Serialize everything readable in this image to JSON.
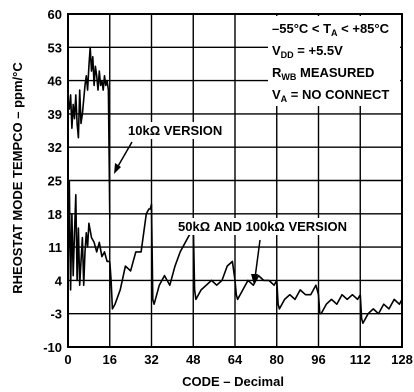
{
  "chart_data": {
    "type": "line",
    "title": "",
    "xlabel": "CODE – Decimal",
    "ylabel": "RHEOSTAT MODE TEMPCO – ppm/°C",
    "xlim": [
      0,
      128
    ],
    "ylim": [
      -10,
      60
    ],
    "x_ticks": [
      "0",
      "16",
      "32",
      "48",
      "64",
      "80",
      "96",
      "112",
      "128"
    ],
    "y_ticks": [
      "60",
      "53",
      "46",
      "39",
      "32",
      "25",
      "18",
      "11",
      "4",
      "-3",
      "-10"
    ],
    "grid": true,
    "conditions": [
      {
        "id": "temp",
        "parts": [
          {
            "t": "–55°C < T"
          },
          {
            "t": "A",
            "sub": true
          },
          {
            "t": " < +85°C"
          }
        ]
      },
      {
        "id": "vdd",
        "parts": [
          {
            "t": "V"
          },
          {
            "t": "DD",
            "sub": true
          },
          {
            "t": " = +5.5V"
          }
        ]
      },
      {
        "id": "rwb",
        "parts": [
          {
            "t": "R"
          },
          {
            "t": "WB",
            "sub": true
          },
          {
            "t": " MEASURED"
          }
        ]
      },
      {
        "id": "va",
        "parts": [
          {
            "t": "V"
          },
          {
            "t": "A",
            "sub": true
          },
          {
            "t": " = NO CONNECT"
          }
        ]
      }
    ],
    "annotations": [
      {
        "text": "10kΩ VERSION",
        "series": "10k"
      },
      {
        "text": "50kΩ AND 100kΩ VERSION",
        "series": "50k-100k"
      }
    ],
    "series": [
      {
        "id": "10k",
        "x": [
          0,
          0.5,
          1,
          1.5,
          2,
          2.5,
          3,
          3.5,
          4,
          4.5,
          5,
          5.5,
          6,
          6.5,
          7,
          7.5,
          8,
          8.5,
          9,
          9.5,
          10,
          10.5,
          11,
          11.5,
          12,
          12.5,
          13,
          13.5,
          14,
          14.5,
          15,
          15.5,
          16
        ],
        "values": [
          42,
          40,
          43,
          36,
          41,
          38,
          43,
          37,
          34,
          44,
          37,
          39,
          42,
          45,
          47,
          44,
          49,
          53,
          48,
          51,
          45,
          49,
          47,
          44,
          48,
          45,
          46,
          44,
          47,
          45,
          46,
          44,
          17
        ]
      },
      {
        "id": "50k-100k",
        "x": [
          0,
          0.5,
          1,
          1.5,
          2,
          2.5,
          3,
          3.5,
          4,
          4.5,
          5,
          5.5,
          6,
          6.5,
          7,
          7.5,
          8,
          9,
          10,
          11,
          12,
          13,
          14,
          15,
          16,
          16.5,
          17,
          18,
          20,
          22,
          24,
          26,
          28,
          30,
          31,
          31.5,
          32,
          32.5,
          33,
          35,
          37,
          39,
          41,
          43,
          45,
          47,
          48,
          48.5,
          49,
          51,
          53,
          55,
          57,
          59,
          61,
          63,
          64,
          64.5,
          65,
          67,
          69,
          71,
          73,
          75,
          77,
          79,
          80,
          80.5,
          81,
          83,
          85,
          87,
          89,
          91,
          93,
          95,
          96,
          96.5,
          97,
          99,
          101,
          103,
          105,
          107,
          109,
          111,
          112,
          112.5,
          113,
          115,
          117,
          119,
          121,
          123,
          125,
          127,
          128
        ],
        "values": [
          4,
          25,
          2,
          18,
          5,
          14,
          22,
          4,
          15,
          3,
          8,
          13,
          3,
          10,
          14,
          11,
          16,
          13,
          12,
          10,
          12,
          9,
          10,
          8,
          8,
          4,
          -2,
          -1,
          2,
          7,
          6,
          10,
          10,
          18,
          19,
          19,
          20,
          0,
          -1,
          3,
          5,
          3,
          7,
          10,
          12,
          14,
          16,
          2,
          0,
          2,
          3,
          4,
          3,
          4,
          7,
          8,
          4,
          1,
          0,
          2,
          4,
          3,
          5,
          4,
          4,
          3,
          4,
          -1,
          -2,
          0,
          1,
          0,
          2,
          1,
          1,
          3,
          1,
          -3,
          -3,
          -1,
          0,
          -1,
          1,
          0,
          1,
          0,
          1,
          -4,
          -5,
          -3,
          -2,
          -3,
          -1,
          -2,
          0,
          -1,
          0
        ]
      }
    ]
  }
}
